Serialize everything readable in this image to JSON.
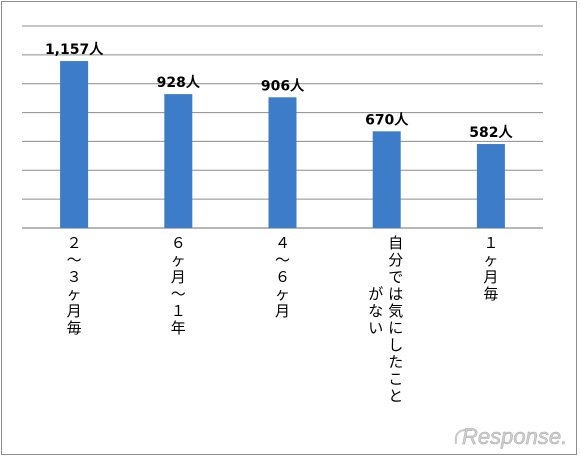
{
  "chart_data": {
    "type": "bar",
    "categories": [
      "２〜３ヶ月毎",
      "６ヶ月〜１年",
      "４〜６ヶ月",
      "自分では気にしたことがない",
      "１ヶ月毎"
    ],
    "category_lines": [
      [
        "２",
        "〜",
        "３",
        "ヶ",
        "月",
        "毎"
      ],
      [
        "６",
        "ヶ",
        "月",
        "〜",
        "１",
        "年"
      ],
      [
        "４",
        "〜",
        "６",
        "ヶ",
        "月"
      ],
      [
        "自",
        "分",
        "で",
        "は",
        "気",
        "に",
        "し",
        "た",
        "こ",
        "と"
      ],
      [
        "１",
        "ヶ",
        "月",
        "毎"
      ]
    ],
    "category_lines_2": [
      [],
      [],
      [],
      [
        "が",
        "な",
        "い"
      ],
      []
    ],
    "values": [
      1157,
      928,
      906,
      670,
      582
    ],
    "value_labels": [
      "1,157人",
      "928人",
      "906人",
      "670人",
      "582人"
    ],
    "ylim": [
      0,
      1400
    ],
    "grid": true,
    "bar_color": "#3d7cc9",
    "grid_color": "#8c8c8c"
  },
  "watermark": {
    "text": "Response."
  }
}
